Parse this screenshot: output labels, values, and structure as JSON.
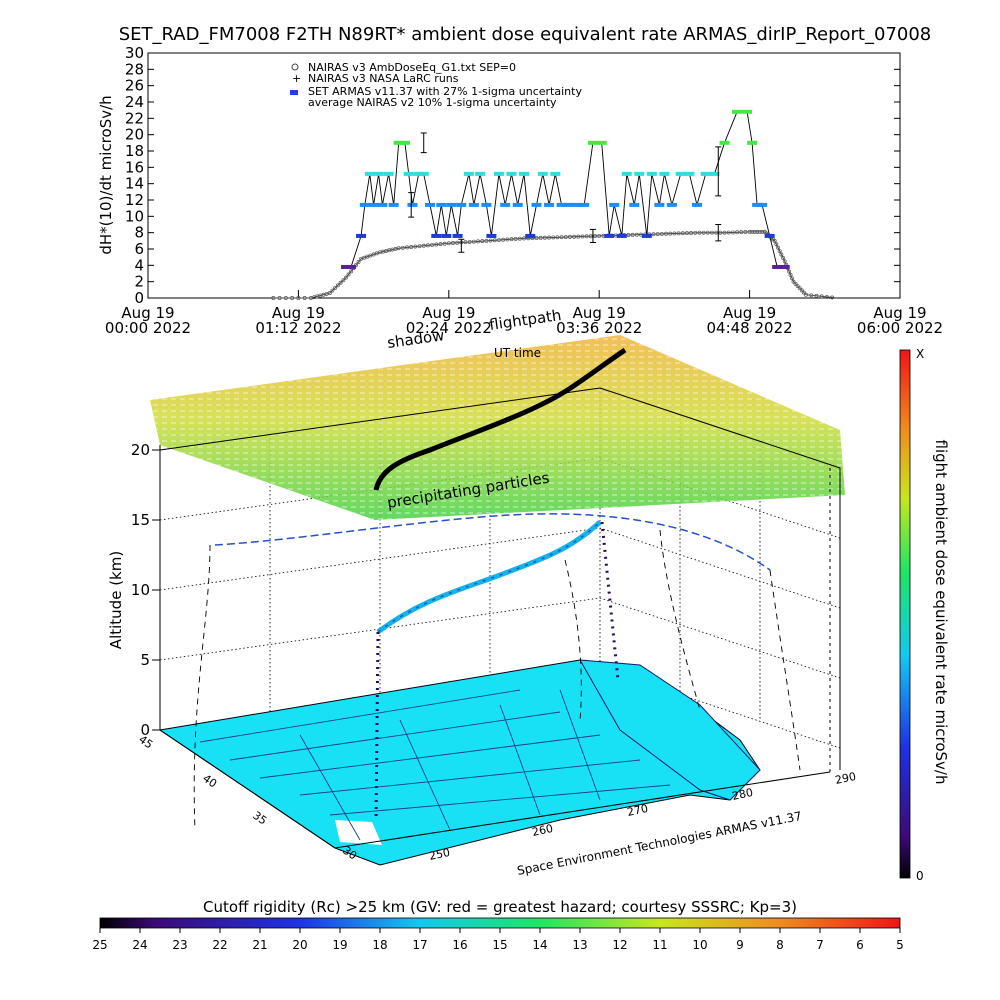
{
  "header": {
    "title": "SET_RAD_FM7008  F2TH N89RT* ambient dose equivalent rate ARMAS_dirIP_Report_07008"
  },
  "top_chart": {
    "ylabel": "dH*(10)/dt microSv/h",
    "x_tick_labels": [
      [
        "Aug 19",
        "00:00 2022"
      ],
      [
        "Aug 19",
        "01:12 2022"
      ],
      [
        "Aug 19",
        "02:24 2022"
      ],
      [
        "Aug 19",
        "03:36 2022"
      ],
      [
        "Aug 19",
        "04:48 2022"
      ],
      [
        "Aug 19",
        "06:00 2022"
      ]
    ],
    "legend": [
      "NAIRAS v3 AmbDoseEq_G1.txt SEP=0",
      "NAIRAS v3 NASA LaRC runs",
      "SET ARMAS v11.37 with 27% 1-sigma uncertainty",
      "average NAIRAS v2 10% 1-sigma uncertainty"
    ]
  },
  "three_d": {
    "label_shadow": "shadow",
    "label_flightpath": "flightpath",
    "label_ut_time": "UT time",
    "label_precip": "precipitating particles",
    "ylabel": "Altitude (km)",
    "alt_ticks": [
      "0",
      "5",
      "10",
      "15",
      "20"
    ],
    "lat_ticks": [
      "45",
      "40",
      "35",
      "30"
    ],
    "lon_ticks": [
      "250",
      "260",
      "270",
      "280",
      "290"
    ],
    "credit": "Space Environment Technologies ARMAS v11.37"
  },
  "right_colorbar": {
    "label": "flight ambient dose equivalent rate microSv/h",
    "top": "X",
    "bottom": "0"
  },
  "bottom_colorbar": {
    "title": "Cutoff rigidity (Rc) >25 km (GV: red = greatest hazard; courtesy SSSRC; Kp=3)",
    "ticks": [
      "25",
      "24",
      "23",
      "22",
      "21",
      "20",
      "19",
      "18",
      "17",
      "16",
      "15",
      "14",
      "13",
      "12",
      "11",
      "10",
      "9",
      "8",
      "7",
      "6",
      "5"
    ]
  },
  "colors": {
    "armas_light": "#32dcdc",
    "armas_blue": "#1e8cf0",
    "armas_green": "#46e646",
    "armas_purple": "#5a1ea0",
    "nairas": "#444444",
    "map_cyan": "#19e1f5"
  },
  "chart_data": [
    {
      "type": "scatter",
      "title": "SET_RAD_FM7008  F2TH N89RT* ambient dose equivalent rate ARMAS_dirIP_Report_07008",
      "ylabel": "dH*(10)/dt microSv/h",
      "xlabel": "",
      "x_range_hours": [
        0,
        6
      ],
      "ylim": [
        0,
        30
      ],
      "series": [
        {
          "name": "SET ARMAS v11.37 with 27% 1-sigma uncertainty",
          "x": [
            1.58,
            1.62,
            1.7,
            1.73,
            1.77,
            1.8,
            1.84,
            1.87,
            1.92,
            1.96,
            2.0,
            2.05,
            2.08,
            2.11,
            2.16,
            2.2,
            2.25,
            2.3,
            2.34,
            2.38,
            2.42,
            2.47,
            2.5,
            2.56,
            2.6,
            2.65,
            2.7,
            2.74,
            2.8,
            2.85,
            2.9,
            2.95,
            3.0,
            3.05,
            3.1,
            3.15,
            3.2,
            3.25,
            3.3,
            3.35,
            3.42,
            3.48,
            3.55,
            3.62,
            3.68,
            3.72,
            3.78,
            3.82,
            3.88,
            3.92,
            3.98,
            4.02,
            4.08,
            4.12,
            4.18,
            4.25,
            4.32,
            4.38,
            4.45,
            4.52,
            4.6,
            4.7,
            4.78,
            4.82,
            4.86,
            4.9,
            4.96,
            5.02,
            5.08
          ],
          "y": [
            3.8,
            3.8,
            7.6,
            11.4,
            15.2,
            11.4,
            15.2,
            11.4,
            15.2,
            11.4,
            19.0,
            19.0,
            15.2,
            11.4,
            15.2,
            15.2,
            11.4,
            7.6,
            11.4,
            7.6,
            11.4,
            7.6,
            11.4,
            15.2,
            11.4,
            15.2,
            11.4,
            7.6,
            15.2,
            11.4,
            15.2,
            11.4,
            15.2,
            7.6,
            11.4,
            15.2,
            11.4,
            15.2,
            11.4,
            11.4,
            11.4,
            11.4,
            19.0,
            19.0,
            7.6,
            11.4,
            7.6,
            15.2,
            11.4,
            15.2,
            7.6,
            15.2,
            11.4,
            15.2,
            11.4,
            15.2,
            15.2,
            11.4,
            15.2,
            15.2,
            19.0,
            22.8,
            22.8,
            19.0,
            11.4,
            11.4,
            7.6,
            3.8,
            3.8
          ]
        },
        {
          "name": "NAIRAS v3 AmbDoseEq_G1.txt SEP=0",
          "x": [
            1.0,
            1.3,
            1.45,
            1.58,
            1.7,
            1.85,
            2.0,
            2.2,
            2.4,
            2.6,
            2.8,
            3.0,
            3.2,
            3.4,
            3.6,
            3.8,
            4.0,
            4.2,
            4.4,
            4.6,
            4.8,
            4.92,
            5.0,
            5.08,
            5.15,
            5.25,
            5.5
          ],
          "y": [
            0,
            0,
            0.6,
            2.5,
            4.8,
            5.6,
            6.1,
            6.4,
            6.7,
            6.9,
            7.1,
            7.3,
            7.4,
            7.5,
            7.6,
            7.7,
            7.8,
            7.9,
            8.0,
            8.0,
            8.1,
            8.1,
            7.0,
            4.5,
            2.0,
            0.4,
            0
          ]
        }
      ]
    }
  ]
}
